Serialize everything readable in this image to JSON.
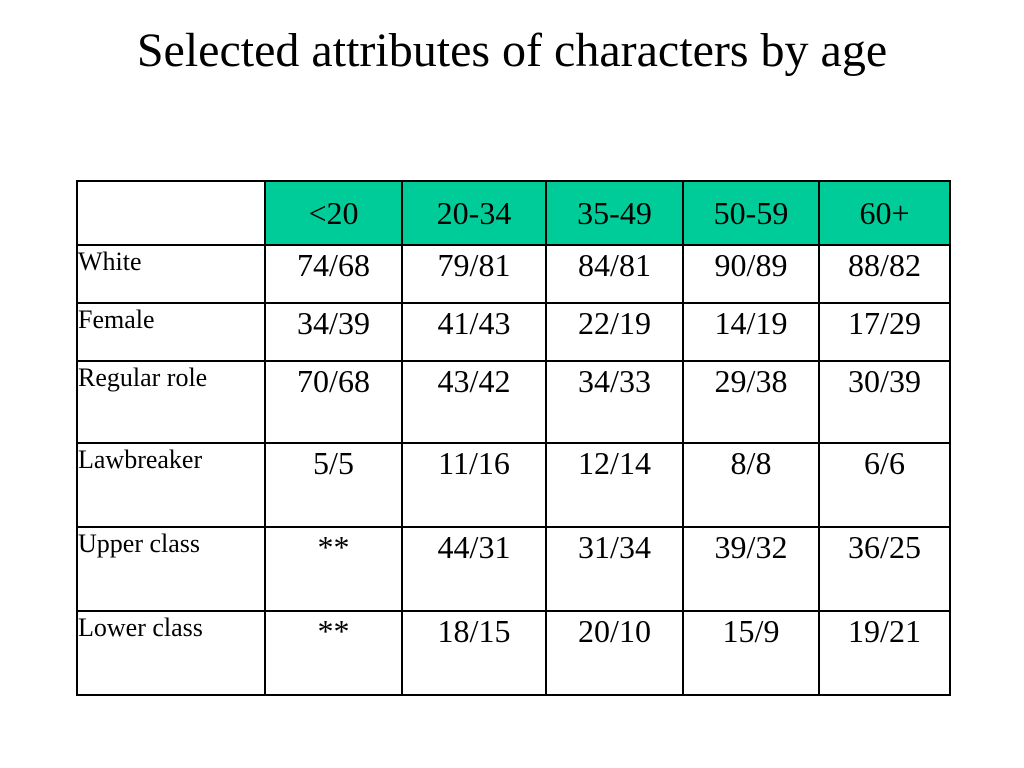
{
  "title": "Selected attributes of characters by age",
  "table": {
    "corner": "",
    "columns": [
      "<20",
      "20-34",
      "35-49",
      "50-59",
      "60+"
    ],
    "rows": [
      {
        "label": "White",
        "values": [
          "74/68",
          "79/81",
          "84/81",
          "90/89",
          "88/82"
        ]
      },
      {
        "label": "Female",
        "values": [
          "34/39",
          "41/43",
          "22/19",
          "14/19",
          "17/29"
        ]
      },
      {
        "label": "Regular role",
        "values": [
          "70/68",
          "43/42",
          "34/33",
          "29/38",
          "30/39"
        ]
      },
      {
        "label": "Lawbreaker",
        "values": [
          "5/5",
          "11/16",
          "12/14",
          "8/8",
          "6/6"
        ]
      },
      {
        "label": "Upper class",
        "values": [
          "**",
          "44/31",
          "31/34",
          "39/32",
          "36/25"
        ]
      },
      {
        "label": "Lower class",
        "values": [
          "**",
          "18/15",
          "20/10",
          "15/9",
          "19/21"
        ]
      }
    ]
  },
  "colors": {
    "header_background": "#00cc99",
    "border": "#000000",
    "text": "#000000"
  }
}
